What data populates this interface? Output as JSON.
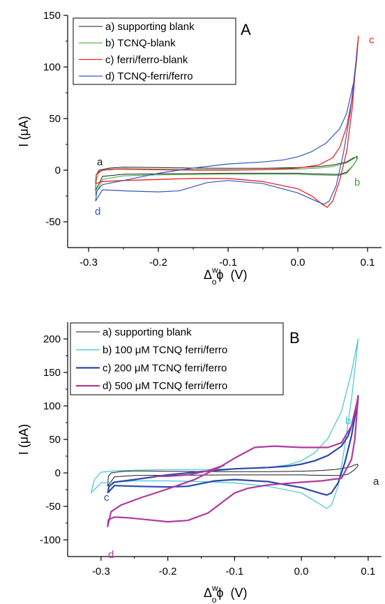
{
  "chart_data": [
    {
      "type": "line",
      "panel_letter": "A",
      "xlabel": {
        "main": "Δ",
        "sup": "w",
        "sub": "o",
        "phi": "ϕ",
        "unit": "(V)"
      },
      "ylabel": "I (μA)",
      "xlim": [
        -0.33,
        0.12
      ],
      "ylim": [
        -75,
        150
      ],
      "xticks": [
        -0.3,
        -0.2,
        -0.1,
        0.0,
        0.1
      ],
      "xtick_labels": [
        "-0.3",
        "-0.2",
        "-0.1",
        "0.0",
        "0.1"
      ],
      "yticks": [
        -50,
        0,
        50,
        100,
        150
      ],
      "ytick_labels": [
        "-50",
        "0",
        "50",
        "100",
        "150"
      ],
      "legend_position": "top-left",
      "series": [
        {
          "name": "a) supporting blank",
          "color": "#1a1a1a",
          "width": 1,
          "label": "a",
          "label_color": "#1a1a1a",
          "points": [
            [
              -0.29,
              -20
            ],
            [
              -0.289,
              -5
            ],
            [
              -0.285,
              0
            ],
            [
              -0.27,
              2
            ],
            [
              -0.25,
              3
            ],
            [
              -0.2,
              2.5
            ],
            [
              -0.15,
              2
            ],
            [
              -0.1,
              1.8
            ],
            [
              -0.05,
              1.8
            ],
            [
              0.0,
              2.5
            ],
            [
              0.03,
              3.5
            ],
            [
              0.05,
              5
            ],
            [
              0.07,
              8
            ],
            [
              0.08,
              12
            ],
            [
              0.084,
              13
            ],
            [
              0.085,
              11
            ],
            [
              0.08,
              5
            ],
            [
              0.07,
              -2
            ],
            [
              0.06,
              -4
            ],
            [
              0.05,
              -4
            ],
            [
              0.02,
              -3.5
            ],
            [
              0.0,
              -3
            ],
            [
              -0.1,
              -3
            ],
            [
              -0.2,
              -3.5
            ],
            [
              -0.25,
              -4
            ],
            [
              -0.28,
              -6
            ],
            [
              -0.29,
              -20
            ]
          ]
        },
        {
          "name": "b) TCNQ-blank",
          "color": "#33aa33",
          "width": 1,
          "label": "b",
          "label_color": "#33aa33",
          "points": [
            [
              -0.29,
              -24
            ],
            [
              -0.289,
              -10
            ],
            [
              -0.285,
              -1
            ],
            [
              -0.27,
              1
            ],
            [
              -0.25,
              1.5
            ],
            [
              -0.2,
              1
            ],
            [
              -0.15,
              0.5
            ],
            [
              -0.1,
              0.5
            ],
            [
              -0.05,
              0.5
            ],
            [
              0.0,
              1
            ],
            [
              0.03,
              2
            ],
            [
              0.05,
              3.5
            ],
            [
              0.07,
              7
            ],
            [
              0.08,
              11
            ],
            [
              0.085,
              14
            ],
            [
              0.086,
              12
            ],
            [
              0.08,
              5
            ],
            [
              0.07,
              -3
            ],
            [
              0.06,
              -5
            ],
            [
              0.05,
              -5
            ],
            [
              0.02,
              -4.5
            ],
            [
              0.0,
              -4
            ],
            [
              -0.1,
              -4
            ],
            [
              -0.2,
              -4.5
            ],
            [
              -0.25,
              -5.5
            ],
            [
              -0.28,
              -9
            ],
            [
              -0.29,
              -24
            ]
          ]
        },
        {
          "name": "c) ferri/ferro-blank",
          "color": "#ee2222",
          "width": 1.3,
          "label": "c",
          "label_color": "#ee2222",
          "points": [
            [
              -0.29,
              -13
            ],
            [
              -0.289,
              -4
            ],
            [
              -0.28,
              0
            ],
            [
              -0.26,
              1
            ],
            [
              -0.2,
              0.5
            ],
            [
              -0.15,
              0
            ],
            [
              -0.1,
              0
            ],
            [
              -0.05,
              0.5
            ],
            [
              0.0,
              2
            ],
            [
              0.03,
              5
            ],
            [
              0.05,
              12
            ],
            [
              0.06,
              22
            ],
            [
              0.07,
              42
            ],
            [
              0.078,
              70
            ],
            [
              0.084,
              105
            ],
            [
              0.087,
              130
            ],
            [
              0.085,
              118
            ],
            [
              0.078,
              60
            ],
            [
              0.07,
              18
            ],
            [
              0.06,
              -10
            ],
            [
              0.05,
              -30
            ],
            [
              0.042,
              -36
            ],
            [
              0.035,
              -33
            ],
            [
              0.02,
              -25
            ],
            [
              0.0,
              -18
            ],
            [
              -0.05,
              -11
            ],
            [
              -0.1,
              -8
            ],
            [
              -0.15,
              -8
            ],
            [
              -0.2,
              -9
            ],
            [
              -0.25,
              -10
            ],
            [
              -0.28,
              -11
            ],
            [
              -0.29,
              -13
            ]
          ]
        },
        {
          "name": "d) TCNQ-ferri/ferro",
          "color": "#3355bb",
          "width": 1.2,
          "label": "d",
          "label_color": "#3355bb",
          "points": [
            [
              -0.29,
              -30
            ],
            [
              -0.288,
              -20
            ],
            [
              -0.28,
              -14
            ],
            [
              -0.25,
              -10
            ],
            [
              -0.2,
              -3
            ],
            [
              -0.15,
              2
            ],
            [
              -0.1,
              6
            ],
            [
              -0.05,
              8
            ],
            [
              -0.02,
              10
            ],
            [
              0.0,
              13
            ],
            [
              0.02,
              18
            ],
            [
              0.04,
              26
            ],
            [
              0.06,
              40
            ],
            [
              0.07,
              55
            ],
            [
              0.08,
              85
            ],
            [
              0.085,
              115
            ],
            [
              0.083,
              100
            ],
            [
              0.075,
              55
            ],
            [
              0.065,
              15
            ],
            [
              0.055,
              -15
            ],
            [
              0.045,
              -30
            ],
            [
              0.038,
              -33
            ],
            [
              0.03,
              -31
            ],
            [
              0.0,
              -22
            ],
            [
              -0.05,
              -13
            ],
            [
              -0.1,
              -10
            ],
            [
              -0.13,
              -12
            ],
            [
              -0.17,
              -20
            ],
            [
              -0.2,
              -21
            ],
            [
              -0.25,
              -20
            ],
            [
              -0.28,
              -19
            ],
            [
              -0.29,
              -30
            ]
          ]
        }
      ]
    },
    {
      "type": "line",
      "panel_letter": "B",
      "xlabel": {
        "main": "Δ",
        "sup": "w",
        "sub": "o",
        "phi": "ϕ",
        "unit": "(V)"
      },
      "ylabel": "I (μA)",
      "xlim": [
        -0.35,
        0.12
      ],
      "ylim": [
        -125,
        225
      ],
      "xticks": [
        -0.3,
        -0.2,
        -0.1,
        0.0,
        0.1
      ],
      "xtick_labels": [
        "-0.3",
        "-0.2",
        "-0.1",
        "0.0",
        "0.1"
      ],
      "yticks": [
        -100,
        -50,
        0,
        50,
        100,
        150,
        200
      ],
      "ytick_labels": [
        "-100",
        "-50",
        "0",
        "50",
        "100",
        "150",
        "200"
      ],
      "legend_position": "top-left",
      "series": [
        {
          "name": "a) supporting blank",
          "color": "#1a1a1a",
          "width": 1,
          "label": "a",
          "label_color": "#1a1a1a",
          "points": [
            [
              -0.29,
              -20
            ],
            [
              -0.289,
              -5
            ],
            [
              -0.285,
              0
            ],
            [
              -0.27,
              2
            ],
            [
              -0.25,
              3
            ],
            [
              -0.2,
              2.5
            ],
            [
              -0.15,
              2
            ],
            [
              -0.1,
              1.8
            ],
            [
              -0.05,
              1.8
            ],
            [
              0.0,
              2.5
            ],
            [
              0.03,
              3.5
            ],
            [
              0.05,
              5
            ],
            [
              0.07,
              8
            ],
            [
              0.08,
              12
            ],
            [
              0.084,
              13
            ],
            [
              0.085,
              11
            ],
            [
              0.08,
              5
            ],
            [
              0.07,
              -2
            ],
            [
              0.06,
              -4
            ],
            [
              0.05,
              -4
            ],
            [
              0.02,
              -3.5
            ],
            [
              0.0,
              -3
            ],
            [
              -0.1,
              -3
            ],
            [
              -0.2,
              -3.5
            ],
            [
              -0.25,
              -4
            ],
            [
              -0.28,
              -6
            ],
            [
              -0.29,
              -20
            ]
          ]
        },
        {
          "name": "b) 100 μM TCNQ ferri/ferro",
          "color": "#44c4d4",
          "width": 1.2,
          "label": "b",
          "label_color": "#44c4d4",
          "points": [
            [
              -0.315,
              -30
            ],
            [
              -0.31,
              -10
            ],
            [
              -0.3,
              1
            ],
            [
              -0.28,
              3
            ],
            [
              -0.25,
              4
            ],
            [
              -0.2,
              5
            ],
            [
              -0.15,
              5
            ],
            [
              -0.1,
              6
            ],
            [
              -0.05,
              8
            ],
            [
              -0.02,
              12
            ],
            [
              0.0,
              18
            ],
            [
              0.02,
              30
            ],
            [
              0.04,
              52
            ],
            [
              0.06,
              92
            ],
            [
              0.075,
              150
            ],
            [
              0.085,
              200
            ],
            [
              0.083,
              180
            ],
            [
              0.075,
              110
            ],
            [
              0.065,
              40
            ],
            [
              0.055,
              -20
            ],
            [
              0.045,
              -48
            ],
            [
              0.038,
              -53
            ],
            [
              0.03,
              -48
            ],
            [
              0.0,
              -30
            ],
            [
              -0.05,
              -20
            ],
            [
              -0.1,
              -15
            ],
            [
              -0.15,
              -13
            ],
            [
              -0.2,
              -12
            ],
            [
              -0.25,
              -12
            ],
            [
              -0.3,
              -15
            ],
            [
              -0.315,
              -30
            ]
          ]
        },
        {
          "name": "c) 200 μM TCNQ ferri/ferro",
          "color": "#2a4aa8",
          "width": 2.2,
          "label": "c",
          "label_color": "#2a4aa8",
          "points": [
            [
              -0.29,
              -30
            ],
            [
              -0.288,
              -20
            ],
            [
              -0.28,
              -14
            ],
            [
              -0.25,
              -10
            ],
            [
              -0.2,
              -3
            ],
            [
              -0.15,
              2
            ],
            [
              -0.1,
              6
            ],
            [
              -0.05,
              8
            ],
            [
              -0.02,
              10
            ],
            [
              0.0,
              13
            ],
            [
              0.02,
              18
            ],
            [
              0.04,
              26
            ],
            [
              0.06,
              40
            ],
            [
              0.07,
              55
            ],
            [
              0.08,
              85
            ],
            [
              0.085,
              115
            ],
            [
              0.083,
              100
            ],
            [
              0.075,
              55
            ],
            [
              0.065,
              15
            ],
            [
              0.055,
              -15
            ],
            [
              0.045,
              -30
            ],
            [
              0.038,
              -33
            ],
            [
              0.03,
              -31
            ],
            [
              0.0,
              -22
            ],
            [
              -0.05,
              -13
            ],
            [
              -0.1,
              -10
            ],
            [
              -0.13,
              -12
            ],
            [
              -0.17,
              -20
            ],
            [
              -0.2,
              -21
            ],
            [
              -0.25,
              -20
            ],
            [
              -0.28,
              -19
            ],
            [
              -0.29,
              -30
            ]
          ]
        },
        {
          "name": "d) 500 μM TCNQ ferri/ferro",
          "color": "#b0399e",
          "width": 2.2,
          "label": "d",
          "label_color": "#b0399e",
          "points": [
            [
              -0.115,
              12
            ],
            [
              -0.14,
              0
            ],
            [
              -0.16,
              -10
            ],
            [
              -0.2,
              -24
            ],
            [
              -0.24,
              -37
            ],
            [
              -0.27,
              -48
            ],
            [
              -0.285,
              -58
            ],
            [
              -0.29,
              -80
            ],
            [
              -0.289,
              -70
            ],
            [
              -0.28,
              -66
            ],
            [
              -0.26,
              -67
            ],
            [
              -0.23,
              -70
            ],
            [
              -0.2,
              -73
            ],
            [
              -0.17,
              -71
            ],
            [
              -0.14,
              -60
            ],
            [
              -0.12,
              -45
            ],
            [
              -0.1,
              -30
            ],
            [
              -0.08,
              -23
            ],
            [
              -0.05,
              -18
            ],
            [
              0.0,
              -14
            ],
            [
              0.03,
              -12
            ],
            [
              0.06,
              -8
            ],
            [
              0.075,
              20
            ],
            [
              0.08,
              50
            ],
            [
              0.085,
              112
            ],
            [
              0.082,
              100
            ],
            [
              0.075,
              70
            ],
            [
              0.06,
              45
            ],
            [
              0.04,
              38
            ],
            [
              0.02,
              38
            ],
            [
              0.0,
              38
            ],
            [
              -0.02,
              39
            ],
            [
              -0.04,
              40
            ],
            [
              -0.07,
              38
            ],
            [
              -0.1,
              22
            ],
            [
              -0.12,
              10
            ],
            [
              -0.14,
              3
            ],
            [
              -0.17,
              -3
            ],
            [
              -0.2,
              -5
            ],
            [
              -0.22,
              -5
            ]
          ]
        }
      ]
    }
  ]
}
